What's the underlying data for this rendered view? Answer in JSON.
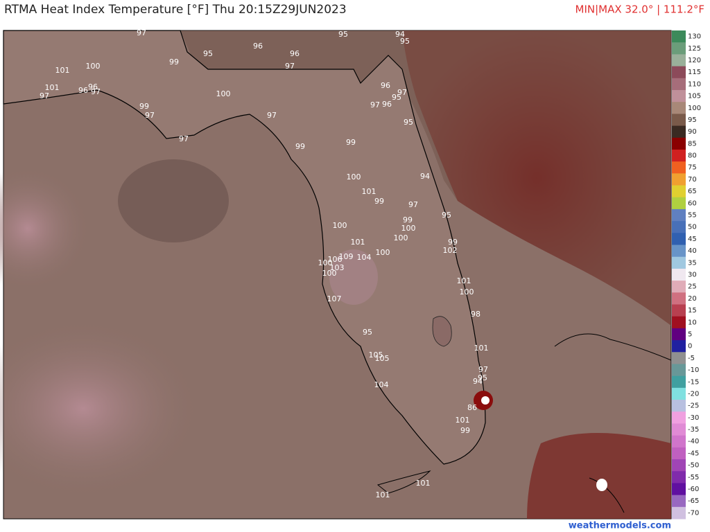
{
  "header": {
    "title": "RTMA Heat Index Temperature [°F]  Thu 20:15Z29JUN2023",
    "minmax": "MIN|MAX 32.0° | 111.2°F"
  },
  "colorbar": {
    "labels": [
      130,
      125,
      120,
      115,
      110,
      105,
      100,
      95,
      90,
      85,
      80,
      75,
      70,
      65,
      60,
      55,
      50,
      45,
      40,
      35,
      30,
      25,
      20,
      15,
      10,
      5,
      0,
      -5,
      -10,
      -15,
      -20,
      -25,
      -30,
      -35,
      -40,
      -45,
      -50,
      -55,
      -60,
      -65,
      -70
    ]
  },
  "stations": [
    97,
    95,
    94,
    95,
    96,
    95,
    96,
    99,
    97,
    101,
    100,
    101,
    96,
    96,
    97,
    97,
    100,
    96,
    97,
    95,
    97,
    96,
    99,
    97,
    97,
    95,
    97,
    99,
    99,
    94,
    100,
    101,
    99,
    97,
    95,
    99,
    100,
    100,
    100,
    101,
    99,
    102,
    100,
    109,
    104,
    106,
    100,
    103,
    100,
    101,
    100,
    107,
    98,
    95,
    101,
    105,
    105,
    97,
    95,
    94,
    104,
    86,
    101,
    99,
    101,
    101
  ],
  "footer": "weathermodels.com"
}
